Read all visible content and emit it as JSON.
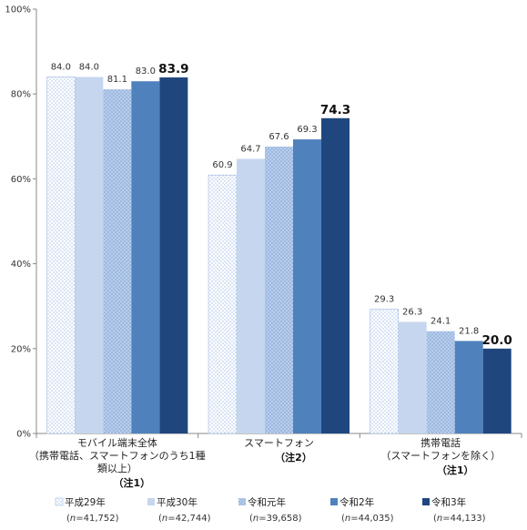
{
  "chart_data": {
    "type": "bar",
    "y_ticks": [
      "0%",
      "20%",
      "40%",
      "60%",
      "80%",
      "100%"
    ],
    "ylim": [
      0,
      100
    ],
    "grid": false,
    "legend_position": "bottom",
    "categories": [
      {
        "lines": [
          "モバイル端末全体",
          "（携帯電話、スマートフォンのうち1種",
          "類以上）"
        ],
        "note": "（注1）"
      },
      {
        "lines": [
          "スマートフォン"
        ],
        "note": "（注2）"
      },
      {
        "lines": [
          "携帯電話",
          "（スマートフォンを除く）"
        ],
        "note": "（注1）"
      }
    ],
    "series": [
      {
        "name": "平成29年",
        "n": "41,752",
        "values": [
          84.0,
          60.9,
          29.3
        ],
        "color": "#dfe9f7",
        "pattern": "dots"
      },
      {
        "name": "平成30年",
        "n": "42,744",
        "values": [
          84.0,
          64.7,
          26.3
        ],
        "color": "#c5d6ee",
        "pattern": "none"
      },
      {
        "name": "令和元年",
        "n": "39,658",
        "values": [
          81.1,
          67.6,
          24.1
        ],
        "color": "#a9c3e8",
        "pattern": "checker"
      },
      {
        "name": "令和2年",
        "n": "44,035",
        "values": [
          83.0,
          69.3,
          21.8
        ],
        "color": "#4f81bd",
        "pattern": "none"
      },
      {
        "name": "令和3年",
        "n": "44,133",
        "values": [
          83.9,
          74.3,
          20.0
        ],
        "color": "#1f477e",
        "pattern": "none",
        "emphasis": true
      }
    ]
  }
}
